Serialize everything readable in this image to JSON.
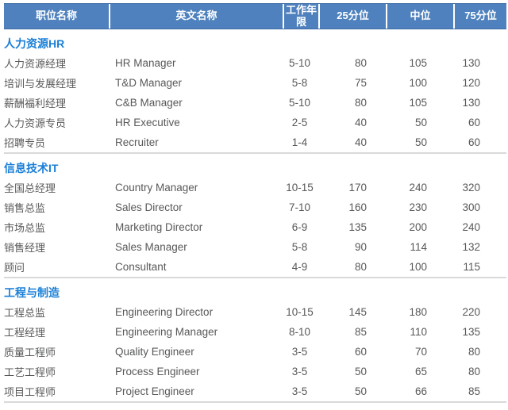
{
  "header": {
    "columns": [
      {
        "key": "position_cn",
        "label": "职位名称"
      },
      {
        "key": "position_en",
        "label": "英文名称"
      },
      {
        "key": "years",
        "label": "工作年限"
      },
      {
        "key": "p25",
        "label": "25分位"
      },
      {
        "key": "median",
        "label": "中位"
      },
      {
        "key": "p75",
        "label": "75分位"
      }
    ]
  },
  "sections": [
    {
      "title": "人力资源HR",
      "rows": [
        {
          "position_cn": "人力资源经理",
          "position_en": "HR Manager",
          "years": "5-10",
          "p25": "80",
          "median": "105",
          "p75": "130"
        },
        {
          "position_cn": "培训与发展经理",
          "position_en": "T&D Manager",
          "years": "5-8",
          "p25": "75",
          "median": "100",
          "p75": "120"
        },
        {
          "position_cn": "薪酬福利经理",
          "position_en": "C&B Manager",
          "years": "5-10",
          "p25": "80",
          "median": "105",
          "p75": "130"
        },
        {
          "position_cn": "人力资源专员",
          "position_en": "HR Executive",
          "years": "2-5",
          "p25": "40",
          "median": "50",
          "p75": "60"
        },
        {
          "position_cn": "招聘专员",
          "position_en": "Recruiter",
          "years": "1-4",
          "p25": "40",
          "median": "50",
          "p75": "60"
        }
      ]
    },
    {
      "title": "信息技术IT",
      "rows": [
        {
          "position_cn": "全国总经理",
          "position_en": "Country Manager",
          "years": "10-15",
          "p25": "170",
          "median": "240",
          "p75": "320"
        },
        {
          "position_cn": "销售总监",
          "position_en": "Sales Director",
          "years": "7-10",
          "p25": "160",
          "median": "230",
          "p75": "300"
        },
        {
          "position_cn": "市场总监",
          "position_en": "Marketing Director",
          "years": "6-9",
          "p25": "135",
          "median": "200",
          "p75": "240"
        },
        {
          "position_cn": "销售经理",
          "position_en": "Sales Manager",
          "years": "5-8",
          "p25": "90",
          "median": "114",
          "p75": "132"
        },
        {
          "position_cn": "顾问",
          "position_en": "Consultant",
          "years": "4-9",
          "p25": "80",
          "median": "100",
          "p75": "115"
        }
      ]
    },
    {
      "title": "工程与制造",
      "rows": [
        {
          "position_cn": "工程总监",
          "position_en": "Engineering Director",
          "years": "10-15",
          "p25": "145",
          "median": "180",
          "p75": "220"
        },
        {
          "position_cn": "工程经理",
          "position_en": "Engineering Manager",
          "years": "8-10",
          "p25": "85",
          "median": "110",
          "p75": "135"
        },
        {
          "position_cn": "质量工程师",
          "position_en": "Quality Engineer",
          "years": "3-5",
          "p25": "60",
          "median": "70",
          "p75": "80"
        },
        {
          "position_cn": "工艺工程师",
          "position_en": "Process Engineer",
          "years": "3-5",
          "p25": "50",
          "median": "65",
          "p75": "80"
        },
        {
          "position_cn": "项目工程师",
          "position_en": "Project Engineer",
          "years": "3-5",
          "p25": "50",
          "median": "66",
          "p75": "85"
        }
      ]
    }
  ],
  "colors": {
    "header_bg": "#4e81bd",
    "header_border": "#3c6ba3",
    "header_text": "#ffffff",
    "section_title": "#1b7fd6",
    "body_text": "#57585a",
    "divider": "#d9d9d9"
  }
}
